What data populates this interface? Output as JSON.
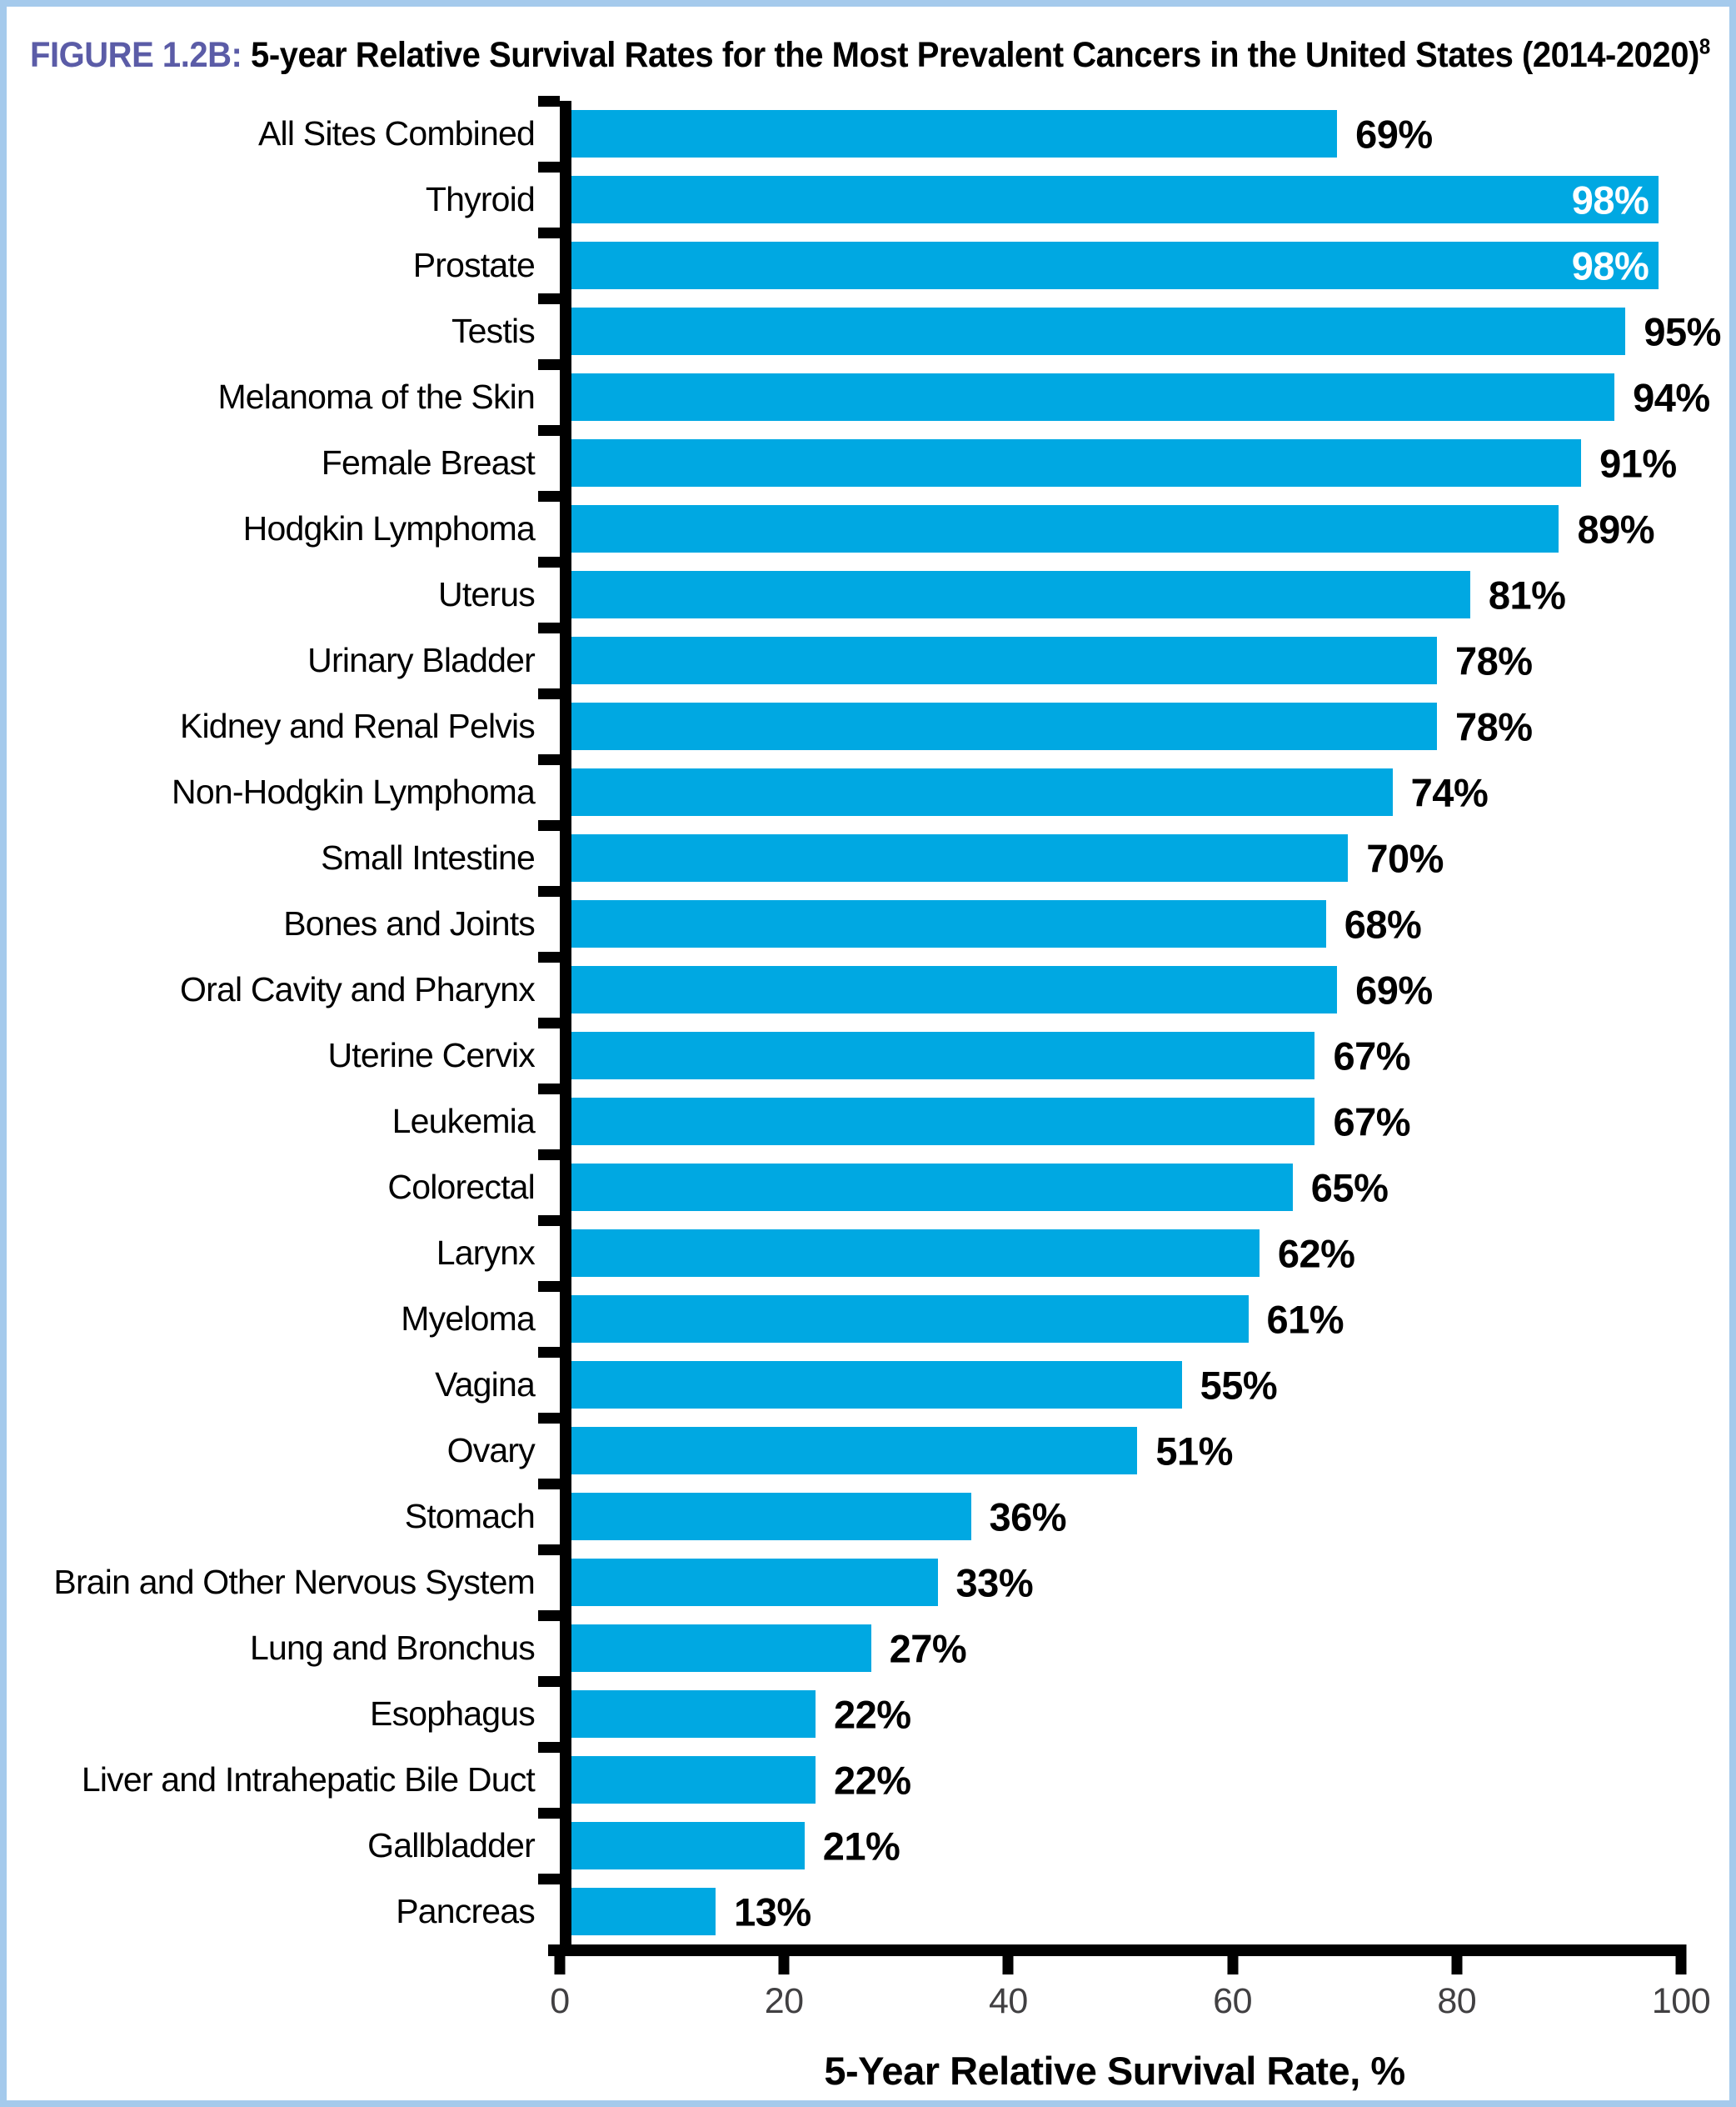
{
  "figure": {
    "label": "FIGURE 1.2B:",
    "title": " 5-year Relative Survival Rates for the Most Prevalent Cancers in the United States (2014-2020)",
    "title_superscript": "8"
  },
  "chart_data": {
    "type": "bar",
    "orientation": "horizontal",
    "title": "FIGURE 1.2B: 5-year Relative Survival Rates for the Most Prevalent Cancers in the United States (2014-2020)",
    "categories": [
      "All Sites Combined",
      "Thyroid",
      "Prostate",
      "Testis",
      "Melanoma of the Skin",
      "Female Breast",
      "Hodgkin Lymphoma",
      "Uterus",
      "Urinary Bladder",
      "Kidney and Renal Pelvis",
      "Non-Hodgkin Lymphoma",
      "Small Intestine",
      "Bones and Joints",
      "Oral Cavity and Pharynx",
      "Uterine Cervix",
      "Leukemia",
      "Colorectal",
      "Larynx",
      "Myeloma",
      "Vagina",
      "Ovary",
      "Stomach",
      "Brain and Other Nervous System",
      "Lung and Bronchus",
      "Esophagus",
      "Liver and Intrahepatic Bile Duct",
      "Gallbladder",
      "Pancreas"
    ],
    "values": [
      69,
      98,
      98,
      95,
      94,
      91,
      89,
      81,
      78,
      78,
      74,
      70,
      68,
      69,
      67,
      67,
      65,
      62,
      61,
      55,
      51,
      36,
      33,
      27,
      22,
      22,
      21,
      13
    ],
    "value_suffix": "%",
    "xlabel": "5-Year Relative Survival Rate, %",
    "xlim": [
      0,
      100
    ],
    "xticks": [
      0,
      20,
      40,
      60,
      80,
      100
    ],
    "grid": false,
    "legend": false,
    "bar_color": "#00a8e2",
    "outside_label_color": "#000000",
    "inside_label_color": "#ffffff",
    "axis_color": "#000000",
    "tick_label_color": "#414042",
    "figure_label_color": "#5b5ca7",
    "page_border_color": "#a5caec"
  }
}
